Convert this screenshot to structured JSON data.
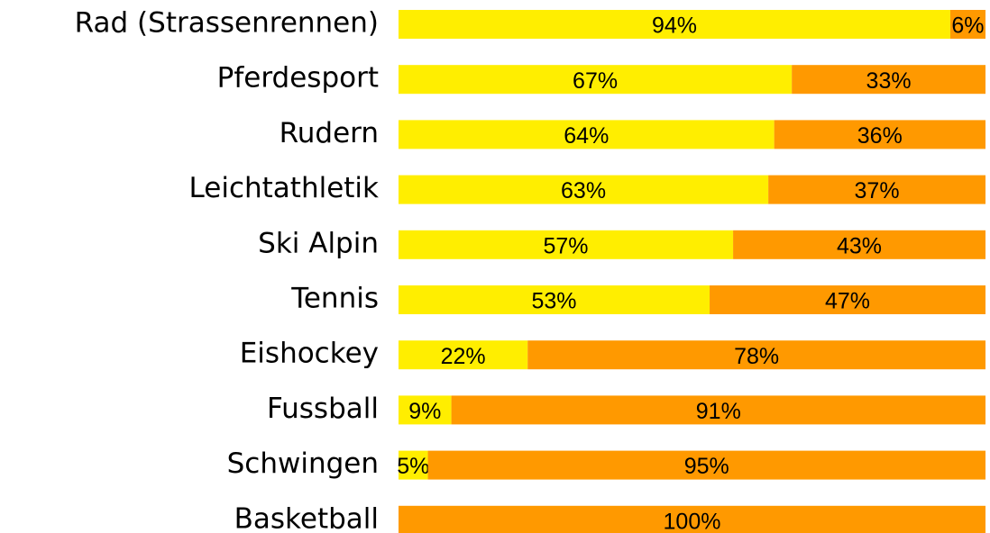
{
  "chart_data": {
    "type": "stacked-bar-horizontal",
    "categories": [
      "Rad (Strassenrennen)",
      "Pferdesport",
      "Rudern",
      "Leichtathletik",
      "Ski Alpin",
      "Tennis",
      "Eishockey",
      "Fussball",
      "Schwingen",
      "Basketball"
    ],
    "xlim": [
      0,
      100
    ],
    "series": [
      {
        "color": "#ffee00",
        "values": [
          94,
          67,
          64,
          63,
          57,
          53,
          22,
          9,
          5,
          0
        ],
        "value_labels": [
          "94%",
          "67%",
          "64%",
          "63%",
          "57%",
          "53%",
          "22%",
          "9%",
          "5%",
          null
        ]
      },
      {
        "color": "#ff9900",
        "values": [
          6,
          33,
          36,
          37,
          43,
          47,
          78,
          91,
          95,
          100
        ],
        "value_labels": [
          "6%",
          "33%",
          "36%",
          "37%",
          "43%",
          "47%",
          "78%",
          "91%",
          "95%",
          "100%"
        ]
      }
    ]
  }
}
